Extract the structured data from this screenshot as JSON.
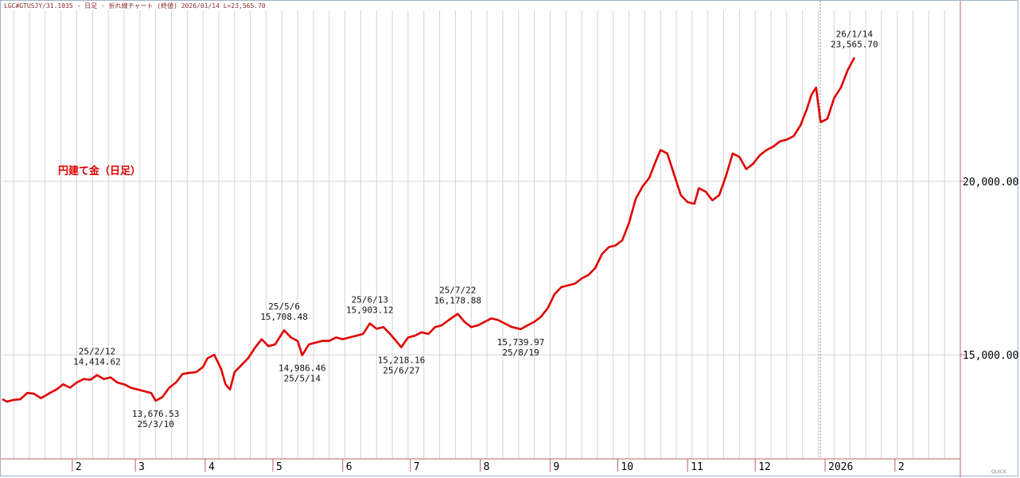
{
  "header": {
    "text": "LGC#GTUSJY/31.1035 - 日足 - 折れ線チャート (終値)  2026/01/14 L=23,565.70"
  },
  "chart_data": {
    "type": "line",
    "title": "円建て金（日足）",
    "xlabel": "",
    "ylabel": "",
    "ylim": [
      12000,
      25200
    ],
    "xlim": [
      "2025-01-01",
      "2026-03-02"
    ],
    "grid": true,
    "y_ticks": [
      15000,
      20000
    ],
    "y_tick_labels": [
      "15,000.00",
      "20,000.00"
    ],
    "x_ticks": [
      {
        "date": "2025-02-01",
        "label": "2"
      },
      {
        "date": "2025-03-01",
        "label": "3"
      },
      {
        "date": "2025-04-01",
        "label": "4"
      },
      {
        "date": "2025-05-01",
        "label": "5"
      },
      {
        "date": "2025-06-01",
        "label": "6"
      },
      {
        "date": "2025-07-01",
        "label": "7"
      },
      {
        "date": "2025-08-01",
        "label": "8"
      },
      {
        "date": "2025-09-01",
        "label": "9"
      },
      {
        "date": "2025-10-01",
        "label": "10"
      },
      {
        "date": "2025-11-01",
        "label": "11"
      },
      {
        "date": "2025-12-01",
        "label": "12"
      },
      {
        "date": "2026-01-01",
        "label": "2026"
      },
      {
        "date": "2026-02-01",
        "label": "2"
      }
    ],
    "cursor_date": "2026-01-01",
    "line_color": "#e00000",
    "series": [
      {
        "x": [
          "2025-01-01",
          "2025-01-03",
          "2025-01-06",
          "2025-01-09",
          "2025-01-12",
          "2025-01-15",
          "2025-01-18",
          "2025-01-20",
          "2025-01-22",
          "2025-01-25",
          "2025-01-28",
          "2025-01-31",
          "2025-02-03",
          "2025-02-06",
          "2025-02-09",
          "2025-02-12",
          "2025-02-15",
          "2025-02-18",
          "2025-02-21",
          "2025-02-24",
          "2025-02-27",
          "2025-03-02",
          "2025-03-05",
          "2025-03-08",
          "2025-03-10",
          "2025-03-13",
          "2025-03-16",
          "2025-03-19",
          "2025-03-22",
          "2025-03-25",
          "2025-03-28",
          "2025-03-31",
          "2025-04-02",
          "2025-04-05",
          "2025-04-08",
          "2025-04-10",
          "2025-04-12",
          "2025-04-14",
          "2025-04-17",
          "2025-04-20",
          "2025-04-23",
          "2025-04-26",
          "2025-04-29",
          "2025-05-02",
          "2025-05-06",
          "2025-05-09",
          "2025-05-12",
          "2025-05-14",
          "2025-05-17",
          "2025-05-20",
          "2025-05-23",
          "2025-05-26",
          "2025-05-29",
          "2025-06-01",
          "2025-06-04",
          "2025-06-07",
          "2025-06-10",
          "2025-06-13",
          "2025-06-16",
          "2025-06-19",
          "2025-06-22",
          "2025-06-24",
          "2025-06-27",
          "2025-06-30",
          "2025-07-03",
          "2025-07-06",
          "2025-07-09",
          "2025-07-12",
          "2025-07-15",
          "2025-07-18",
          "2025-07-22",
          "2025-07-25",
          "2025-07-28",
          "2025-07-31",
          "2025-08-03",
          "2025-08-06",
          "2025-08-09",
          "2025-08-12",
          "2025-08-15",
          "2025-08-19",
          "2025-08-22",
          "2025-08-25",
          "2025-08-28",
          "2025-08-31",
          "2025-09-03",
          "2025-09-06",
          "2025-09-09",
          "2025-09-12",
          "2025-09-15",
          "2025-09-18",
          "2025-09-21",
          "2025-09-24",
          "2025-09-27",
          "2025-09-30",
          "2025-10-03",
          "2025-10-06",
          "2025-10-09",
          "2025-10-12",
          "2025-10-15",
          "2025-10-18",
          "2025-10-20",
          "2025-10-23",
          "2025-10-26",
          "2025-10-29",
          "2025-11-01",
          "2025-11-04",
          "2025-11-06",
          "2025-11-09",
          "2025-11-12",
          "2025-11-15",
          "2025-11-18",
          "2025-11-21",
          "2025-11-24",
          "2025-11-27",
          "2025-11-30",
          "2025-12-03",
          "2025-12-06",
          "2025-12-09",
          "2025-12-12",
          "2025-12-15",
          "2025-12-18",
          "2025-12-21",
          "2025-12-24",
          "2025-12-26",
          "2025-12-28",
          "2025-12-30",
          "2026-01-02",
          "2026-01-05",
          "2026-01-08",
          "2026-01-11",
          "2026-01-14"
        ],
        "values": [
          13720,
          13650,
          13700,
          13720,
          13900,
          13880,
          13750,
          13820,
          13900,
          14000,
          14150,
          14050,
          14200,
          14300,
          14280,
          14414.62,
          14300,
          14350,
          14200,
          14150,
          14050,
          14000,
          13950,
          13900,
          13676.53,
          13780,
          14050,
          14200,
          14450,
          14480,
          14500,
          14650,
          14900,
          15000,
          14600,
          14150,
          14000,
          14500,
          14700,
          14900,
          15200,
          15450,
          15250,
          15300,
          15708.48,
          15500,
          15400,
          14986.46,
          15300,
          15350,
          15400,
          15400,
          15500,
          15450,
          15500,
          15550,
          15600,
          15903.12,
          15750,
          15800,
          15600,
          15450,
          15218.16,
          15500,
          15550,
          15650,
          15600,
          15800,
          15850,
          16000,
          16178.88,
          15950,
          15800,
          15850,
          15950,
          16050,
          16000,
          15900,
          15800,
          15739.97,
          15850,
          15950,
          16100,
          16350,
          16750,
          16950,
          17000,
          17050,
          17200,
          17300,
          17500,
          17900,
          18100,
          18150,
          18300,
          18800,
          19500,
          19850,
          20100,
          20600,
          20900,
          20800,
          20200,
          19600,
          19400,
          19350,
          19800,
          19700,
          19450,
          19600,
          20150,
          20800,
          20700,
          20350,
          20500,
          20750,
          20900,
          21000,
          21150,
          21200,
          21300,
          21600,
          22100,
          22500,
          22700,
          21700,
          21800,
          22400,
          22700,
          23200,
          23565.7
        ]
      }
    ],
    "annotations": [
      {
        "date": "2025-02-12",
        "value": 14414.62,
        "label_date": "25/2/12",
        "label_value": "14,414.62",
        "position": "above"
      },
      {
        "date": "2025-03-10",
        "value": 13676.53,
        "label_date": "25/3/10",
        "label_value": "13,676.53",
        "position": "below"
      },
      {
        "date": "2025-05-06",
        "value": 15708.48,
        "label_date": "25/5/6",
        "label_value": "15,708.48",
        "position": "above"
      },
      {
        "date": "2025-05-14",
        "value": 14986.46,
        "label_date": "25/5/14",
        "label_value": "14,986.46",
        "position": "below"
      },
      {
        "date": "2025-06-13",
        "value": 15903.12,
        "label_date": "25/6/13",
        "label_value": "15,903.12",
        "position": "above"
      },
      {
        "date": "2025-06-27",
        "value": 15218.16,
        "label_date": "25/6/27",
        "label_value": "15,218.16",
        "position": "below"
      },
      {
        "date": "2025-07-22",
        "value": 16178.88,
        "label_date": "25/7/22",
        "label_value": "16,178.88",
        "position": "above"
      },
      {
        "date": "2025-08-19",
        "value": 15739.97,
        "label_date": "25/8/19",
        "label_value": "15,739.97",
        "position": "below"
      },
      {
        "date": "2026-01-14",
        "value": 23565.7,
        "label_date": "26/1/14",
        "label_value": "23,565.70",
        "position": "above"
      }
    ]
  },
  "footer": {
    "watermark": "QUICK"
  }
}
